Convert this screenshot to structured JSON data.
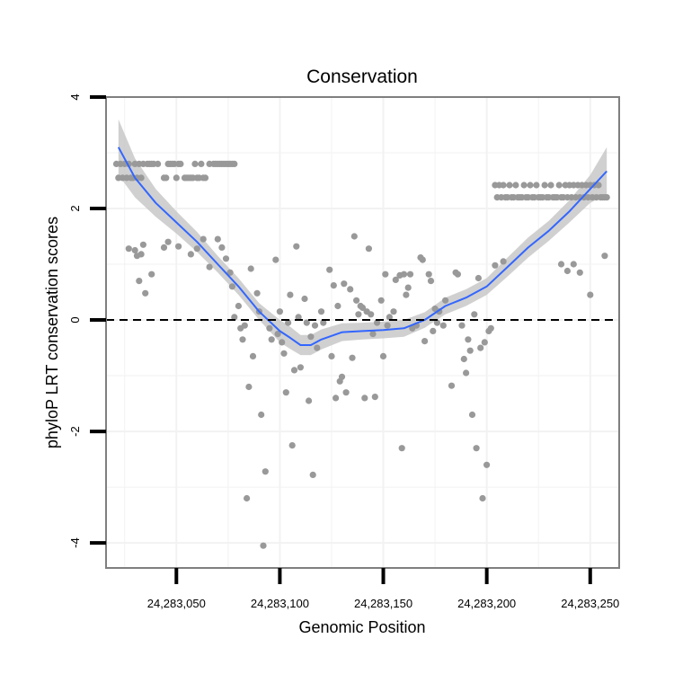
{
  "chart_data": {
    "type": "scatter",
    "title": "Conservation",
    "xlabel": "Genomic Position",
    "ylabel": "phyloP LRT conservation scores",
    "xlim": [
      24283016,
      24283264
    ],
    "ylim": [
      -4.45,
      4
    ],
    "x_ticks": [
      24283050,
      24283100,
      24283150,
      24283200,
      24283250
    ],
    "x_tick_labels": [
      "24,283,050",
      "24,283,100",
      "24,283,150",
      "24,283,200",
      "24,283,250"
    ],
    "y_ticks": [
      -4,
      -2,
      0,
      2,
      4
    ],
    "y_tick_labels": [
      "-4",
      "-2",
      "0",
      "2",
      "4"
    ],
    "reference_line": {
      "y": 0,
      "style": "dashed"
    },
    "colors": {
      "points": "#999999",
      "smooth": "#3366ff",
      "ribbon": "#c8c8c8",
      "frame": "#7f7f7f",
      "grid": "#f2f2f2"
    },
    "points": [
      [
        24283021,
        2.8
      ],
      [
        24283022,
        2.55
      ],
      [
        24283023,
        2.8
      ],
      [
        24283024,
        2.55
      ],
      [
        24283025,
        2.8
      ],
      [
        24283026,
        2.55
      ],
      [
        24283027,
        2.8
      ],
      [
        24283028,
        2.55
      ],
      [
        24283029,
        2.55
      ],
      [
        24283030,
        2.8
      ],
      [
        24283031,
        2.55
      ],
      [
        24283032,
        2.8
      ],
      [
        24283033,
        2.55
      ],
      [
        24283034,
        2.8
      ],
      [
        24283036,
        2.8
      ],
      [
        24283037,
        2.8
      ],
      [
        24283038,
        2.8
      ],
      [
        24283039,
        2.8
      ],
      [
        24283041,
        2.8
      ],
      [
        24283044,
        2.55
      ],
      [
        24283045,
        2.55
      ],
      [
        24283046,
        2.8
      ],
      [
        24283047,
        2.8
      ],
      [
        24283048,
        2.8
      ],
      [
        24283049,
        2.8
      ],
      [
        24283050,
        2.55
      ],
      [
        24283051,
        2.8
      ],
      [
        24283052,
        2.8
      ],
      [
        24283054,
        2.55
      ],
      [
        24283055,
        2.55
      ],
      [
        24283056,
        2.55
      ],
      [
        24283057,
        2.55
      ],
      [
        24283058,
        2.55
      ],
      [
        24283059,
        2.8
      ],
      [
        24283060,
        2.55
      ],
      [
        24283061,
        2.55
      ],
      [
        24283062,
        2.8
      ],
      [
        24283063,
        2.55
      ],
      [
        24283064,
        2.55
      ],
      [
        24283066,
        2.8
      ],
      [
        24283068,
        2.8
      ],
      [
        24283069,
        2.8
      ],
      [
        24283070,
        2.8
      ],
      [
        24283071,
        2.8
      ],
      [
        24283072,
        2.8
      ],
      [
        24283073,
        2.8
      ],
      [
        24283074,
        2.8
      ],
      [
        24283075,
        2.8
      ],
      [
        24283076,
        2.8
      ],
      [
        24283077,
        2.8
      ],
      [
        24283078,
        2.8
      ],
      [
        24283027,
        1.28
      ],
      [
        24283030,
        1.25
      ],
      [
        24283031,
        1.15
      ],
      [
        24283032,
        0.7
      ],
      [
        24283033,
        1.18
      ],
      [
        24283034,
        1.35
      ],
      [
        24283035,
        0.48
      ],
      [
        24283038,
        0.82
      ],
      [
        24283044,
        1.3
      ],
      [
        24283046,
        1.4
      ],
      [
        24283051,
        1.32
      ],
      [
        24283057,
        1.18
      ],
      [
        24283060,
        1.28
      ],
      [
        24283063,
        1.45
      ],
      [
        24283066,
        0.95
      ],
      [
        24283070,
        1.45
      ],
      [
        24283072,
        1.3
      ],
      [
        24283074,
        1.1
      ],
      [
        24283076,
        0.85
      ],
      [
        24283077,
        0.6
      ],
      [
        24283078,
        0.05
      ],
      [
        24283080,
        0.25
      ],
      [
        24283081,
        -0.15
      ],
      [
        24283082,
        -0.35
      ],
      [
        24283083,
        -0.1
      ],
      [
        24283084,
        -3.2
      ],
      [
        24283085,
        -1.2
      ],
      [
        24283086,
        0.92
      ],
      [
        24283087,
        -0.65
      ],
      [
        24283089,
        0.48
      ],
      [
        24283090,
        0.15
      ],
      [
        24283091,
        -1.7
      ],
      [
        24283092,
        -4.05
      ],
      [
        24283093,
        -2.72
      ],
      [
        24283095,
        -0.15
      ],
      [
        24283096,
        -0.35
      ],
      [
        24283098,
        1.08
      ],
      [
        24283099,
        -0.25
      ],
      [
        24283100,
        0.15
      ],
      [
        24283101,
        -0.4
      ],
      [
        24283102,
        -0.6
      ],
      [
        24283103,
        -1.3
      ],
      [
        24283104,
        -0.05
      ],
      [
        24283105,
        0.45
      ],
      [
        24283106,
        -2.25
      ],
      [
        24283107,
        -0.9
      ],
      [
        24283108,
        1.32
      ],
      [
        24283109,
        0.05
      ],
      [
        24283110,
        -0.85
      ],
      [
        24283112,
        0.38
      ],
      [
        24283113,
        -0.05
      ],
      [
        24283114,
        -1.45
      ],
      [
        24283115,
        -0.3
      ],
      [
        24283116,
        -2.78
      ],
      [
        24283117,
        -0.1
      ],
      [
        24283118,
        -0.5
      ],
      [
        24283120,
        0.15
      ],
      [
        24283121,
        -0.05
      ],
      [
        24283124,
        0.9
      ],
      [
        24283125,
        -0.65
      ],
      [
        24283126,
        0.62
      ],
      [
        24283127,
        -1.4
      ],
      [
        24283128,
        0.25
      ],
      [
        24283129,
        -1.1
      ],
      [
        24283130,
        -1.02
      ],
      [
        24283131,
        0.65
      ],
      [
        24283132,
        -1.3
      ],
      [
        24283134,
        0.55
      ],
      [
        24283135,
        -0.68
      ],
      [
        24283136,
        1.5
      ],
      [
        24283137,
        0.35
      ],
      [
        24283138,
        0.1
      ],
      [
        24283139,
        0.25
      ],
      [
        24283140,
        0.22
      ],
      [
        24283141,
        -1.4
      ],
      [
        24283142,
        0.15
      ],
      [
        24283143,
        1.28
      ],
      [
        24283144,
        0.1
      ],
      [
        24283145,
        -0.25
      ],
      [
        24283146,
        -1.38
      ],
      [
        24283147,
        -0.05
      ],
      [
        24283149,
        0.35
      ],
      [
        24283150,
        -0.65
      ],
      [
        24283151,
        0.82
      ],
      [
        24283152,
        -0.1
      ],
      [
        24283153,
        0.05
      ],
      [
        24283155,
        0.15
      ],
      [
        24283156,
        0.72
      ],
      [
        24283158,
        0.8
      ],
      [
        24283159,
        -2.3
      ],
      [
        24283160,
        0.82
      ],
      [
        24283161,
        0.45
      ],
      [
        24283162,
        0.58
      ],
      [
        24283163,
        0.82
      ],
      [
        24283164,
        -0.15
      ],
      [
        24283166,
        -0.1
      ],
      [
        24283168,
        1.12
      ],
      [
        24283169,
        1.08
      ],
      [
        24283170,
        -0.38
      ],
      [
        24283172,
        0.82
      ],
      [
        24283173,
        0.7
      ],
      [
        24283174,
        -0.2
      ],
      [
        24283175,
        0.2
      ],
      [
        24283176,
        -0.05
      ],
      [
        24283177,
        0.15
      ],
      [
        24283179,
        -0.1
      ],
      [
        24283180,
        0.35
      ],
      [
        24283183,
        -1.18
      ],
      [
        24283185,
        0.85
      ],
      [
        24283186,
        0.82
      ],
      [
        24283188,
        -0.1
      ],
      [
        24283189,
        -0.7
      ],
      [
        24283190,
        -0.95
      ],
      [
        24283191,
        -0.35
      ],
      [
        24283192,
        -0.55
      ],
      [
        24283193,
        -1.7
      ],
      [
        24283194,
        0.1
      ],
      [
        24283195,
        -2.3
      ],
      [
        24283196,
        0.75
      ],
      [
        24283197,
        -0.5
      ],
      [
        24283198,
        -3.2
      ],
      [
        24283199,
        -0.4
      ],
      [
        24283200,
        -2.6
      ],
      [
        24283201,
        -0.2
      ],
      [
        24283202,
        -0.15
      ],
      [
        24283204,
        0.98
      ],
      [
        24283208,
        1.05
      ],
      [
        24283236,
        1.0
      ],
      [
        24283239,
        0.88
      ],
      [
        24283242,
        1.0
      ],
      [
        24283245,
        0.85
      ],
      [
        24283250,
        0.45
      ],
      [
        24283257,
        1.15
      ],
      [
        24283204,
        2.42
      ],
      [
        24283205,
        2.2
      ],
      [
        24283206,
        2.42
      ],
      [
        24283207,
        2.2
      ],
      [
        24283208,
        2.42
      ],
      [
        24283209,
        2.2
      ],
      [
        24283210,
        2.2
      ],
      [
        24283211,
        2.42
      ],
      [
        24283212,
        2.2
      ],
      [
        24283213,
        2.2
      ],
      [
        24283214,
        2.42
      ],
      [
        24283215,
        2.2
      ],
      [
        24283216,
        2.2
      ],
      [
        24283217,
        2.2
      ],
      [
        24283218,
        2.42
      ],
      [
        24283219,
        2.2
      ],
      [
        24283220,
        2.2
      ],
      [
        24283221,
        2.42
      ],
      [
        24283222,
        2.2
      ],
      [
        24283223,
        2.2
      ],
      [
        24283224,
        2.42
      ],
      [
        24283225,
        2.2
      ],
      [
        24283226,
        2.2
      ],
      [
        24283227,
        2.2
      ],
      [
        24283228,
        2.42
      ],
      [
        24283229,
        2.2
      ],
      [
        24283230,
        2.2
      ],
      [
        24283231,
        2.42
      ],
      [
        24283232,
        2.2
      ],
      [
        24283233,
        2.2
      ],
      [
        24283234,
        2.2
      ],
      [
        24283235,
        2.42
      ],
      [
        24283236,
        2.2
      ],
      [
        24283237,
        2.2
      ],
      [
        24283238,
        2.42
      ],
      [
        24283239,
        2.2
      ],
      [
        24283240,
        2.42
      ],
      [
        24283241,
        2.2
      ],
      [
        24283242,
        2.42
      ],
      [
        24283243,
        2.2
      ],
      [
        24283244,
        2.42
      ],
      [
        24283245,
        2.2
      ],
      [
        24283246,
        2.42
      ],
      [
        24283247,
        2.2
      ],
      [
        24283248,
        2.42
      ],
      [
        24283249,
        2.2
      ],
      [
        24283250,
        2.42
      ],
      [
        24283251,
        2.2
      ],
      [
        24283252,
        2.42
      ],
      [
        24283253,
        2.2
      ],
      [
        24283254,
        2.42
      ],
      [
        24283255,
        2.2
      ],
      [
        24283256,
        2.2
      ],
      [
        24283257,
        2.2
      ],
      [
        24283258,
        2.2
      ]
    ],
    "smooth": {
      "x": [
        24283022,
        24283030,
        24283040,
        24283050,
        24283060,
        24283070,
        24283080,
        24283090,
        24283100,
        24283105,
        24283110,
        24283115,
        24283120,
        24283130,
        24283140,
        24283150,
        24283160,
        24283170,
        24283180,
        24283190,
        24283200,
        24283210,
        24283220,
        24283230,
        24283240,
        24283250,
        24283258
      ],
      "y": [
        3.1,
        2.55,
        2.1,
        1.75,
        1.4,
        1.0,
        0.6,
        0.15,
        -0.2,
        -0.32,
        -0.45,
        -0.45,
        -0.35,
        -0.22,
        -0.2,
        -0.18,
        -0.15,
        0.0,
        0.25,
        0.4,
        0.6,
        0.95,
        1.3,
        1.6,
        1.95,
        2.35,
        2.67
      ],
      "lower": [
        2.6,
        2.2,
        1.85,
        1.55,
        1.22,
        0.85,
        0.45,
        0.0,
        -0.4,
        -0.52,
        -0.63,
        -0.63,
        -0.53,
        -0.38,
        -0.35,
        -0.33,
        -0.3,
        -0.14,
        0.1,
        0.25,
        0.45,
        0.78,
        1.12,
        1.42,
        1.75,
        2.1,
        2.25
      ],
      "upper": [
        3.6,
        2.9,
        2.35,
        1.95,
        1.58,
        1.15,
        0.75,
        0.3,
        0.0,
        -0.12,
        -0.27,
        -0.27,
        -0.17,
        -0.06,
        -0.05,
        -0.03,
        0.0,
        0.14,
        0.4,
        0.55,
        0.75,
        1.12,
        1.48,
        1.78,
        2.15,
        2.6,
        3.1
      ]
    }
  }
}
